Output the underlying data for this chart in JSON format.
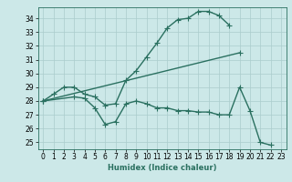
{
  "bg_color": "#cce8e8",
  "grid_color": "#aacccc",
  "line_color": "#2a7060",
  "line_width": 1.0,
  "marker": "+",
  "marker_size": 4,
  "marker_lw": 0.8,
  "xlabel": "Humidex (Indice chaleur)",
  "xlabel_fontsize": 6.0,
  "xlim": [
    -0.5,
    23.5
  ],
  "ylim": [
    24.5,
    34.8
  ],
  "xticks": [
    0,
    1,
    2,
    3,
    4,
    5,
    6,
    7,
    8,
    9,
    10,
    11,
    12,
    13,
    14,
    15,
    16,
    17,
    18,
    19,
    20,
    21,
    22,
    23
  ],
  "yticks": [
    25,
    26,
    27,
    28,
    29,
    30,
    31,
    32,
    33,
    34
  ],
  "tick_fontsize": 5.5,
  "series": [
    {
      "x": [
        0,
        1,
        2,
        3,
        4,
        5,
        6,
        7,
        8,
        9,
        10,
        11,
        12,
        13,
        14,
        15,
        16,
        17,
        18
      ],
      "y": [
        28.0,
        28.5,
        29.0,
        29.0,
        28.5,
        28.3,
        27.7,
        27.8,
        29.5,
        30.2,
        31.2,
        32.2,
        33.3,
        33.9,
        34.0,
        34.5,
        34.5,
        34.2,
        33.5
      ]
    },
    {
      "x": [
        0,
        19
      ],
      "y": [
        28.0,
        31.5
      ]
    },
    {
      "x": [
        0,
        3,
        4,
        5,
        6,
        7,
        8,
        9,
        10,
        11,
        12,
        13,
        14,
        15,
        16,
        17,
        18,
        19,
        20,
        21,
        22
      ],
      "y": [
        28.0,
        28.3,
        28.2,
        27.5,
        26.3,
        26.5,
        27.8,
        28.0,
        27.8,
        27.5,
        27.5,
        27.3,
        27.3,
        27.2,
        27.2,
        27.0,
        27.0,
        29.0,
        27.3,
        25.0,
        24.8
      ]
    }
  ]
}
